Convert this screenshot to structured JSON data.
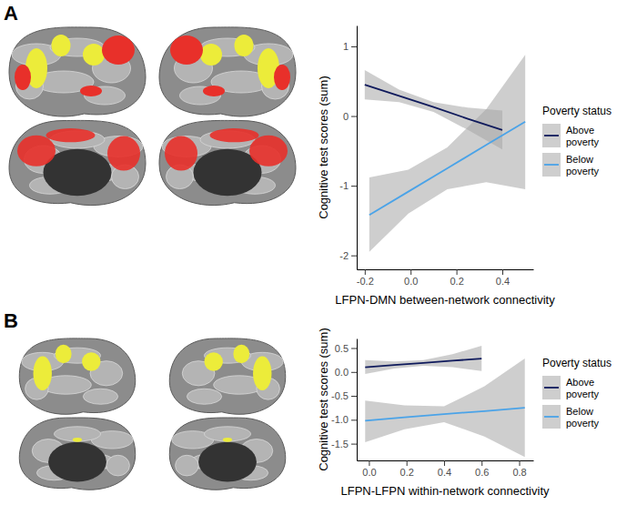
{
  "chart_data": [
    {
      "type": "line",
      "title": "A",
      "x_label": "LFPN-DMN between-network connectivity",
      "y_label": "Cognitive test scores (sum)",
      "legend_title": "Poverty status",
      "legend": "right",
      "xlim": [
        -0.235,
        0.535
      ],
      "xticks": [
        {
          "value": -0.2,
          "label": "-0.2"
        },
        {
          "value": 0,
          "label": "0.0"
        },
        {
          "value": 0.2,
          "label": "0.2"
        },
        {
          "value": 0.4,
          "label": "0.4"
        }
      ],
      "ylim": [
        -2.2,
        1.3
      ],
      "yticks": [
        -2,
        -1,
        0,
        1
      ],
      "series": [
        {
          "name": "Above poverty",
          "color": "#0f1a5c",
          "x": [
            -0.2,
            -0.05,
            0.1,
            0.25,
            0.4
          ],
          "values": [
            0.45,
            0.29,
            0.13,
            -0.04,
            -0.2
          ],
          "ci_lower": [
            0.24,
            0.2,
            0.06,
            -0.2,
            -0.48
          ],
          "ci_upper": [
            0.66,
            0.38,
            0.2,
            0.12,
            0.08
          ]
        },
        {
          "name": "Below poverty",
          "color": "#4aa3e8",
          "x": [
            -0.18,
            -0.01,
            0.16,
            0.33,
            0.5
          ],
          "values": [
            -1.42,
            -1.085,
            -0.75,
            -0.415,
            -0.08
          ],
          "ci_lower": [
            -1.95,
            -1.4,
            -1.05,
            -0.95,
            -1.05
          ],
          "ci_upper": [
            -0.88,
            -0.77,
            -0.45,
            0.1,
            0.88
          ]
        }
      ]
    },
    {
      "type": "line",
      "title": "B",
      "x_label": "LFPN-LFPN within-network connectivity",
      "y_label": "Cognitive test scores (sum)",
      "legend_title": "Poverty status",
      "legend": "right",
      "xlim": [
        -0.065,
        0.875
      ],
      "xticks": [
        {
          "value": 0,
          "label": "0.0"
        },
        {
          "value": 0.2,
          "label": "0.2"
        },
        {
          "value": 0.4,
          "label": "0.4"
        },
        {
          "value": 0.6,
          "label": "0.6"
        },
        {
          "value": 0.8,
          "label": "0.8"
        }
      ],
      "ylim": [
        -1.85,
        0.7
      ],
      "yticks": [
        {
          "value": -1.5,
          "label": "-1.5"
        },
        {
          "value": -1,
          "label": "-1.0"
        },
        {
          "value": -0.5,
          "label": "-0.5"
        },
        {
          "value": 0,
          "label": "0.0"
        },
        {
          "value": 0.5,
          "label": "0.5"
        }
      ],
      "series": [
        {
          "name": "Above poverty",
          "color": "#0f1a5c",
          "x": [
            -0.02,
            0.135,
            0.29,
            0.445,
            0.6
          ],
          "values": [
            0.1,
            0.145,
            0.19,
            0.235,
            0.28
          ],
          "ci_lower": [
            -0.04,
            0.07,
            0.13,
            0.1,
            0.02
          ],
          "ci_upper": [
            0.25,
            0.22,
            0.25,
            0.37,
            0.55
          ]
        },
        {
          "name": "Below poverty",
          "color": "#4aa3e8",
          "x": [
            -0.02,
            0.19,
            0.4,
            0.615,
            0.83
          ],
          "values": [
            -1.02,
            -0.95,
            -0.88,
            -0.82,
            -0.75
          ],
          "ci_lower": [
            -1.47,
            -1.2,
            -1.05,
            -1.35,
            -1.78
          ],
          "ci_upper": [
            -0.6,
            -0.7,
            -0.72,
            -0.3,
            0.28
          ]
        }
      ]
    }
  ]
}
